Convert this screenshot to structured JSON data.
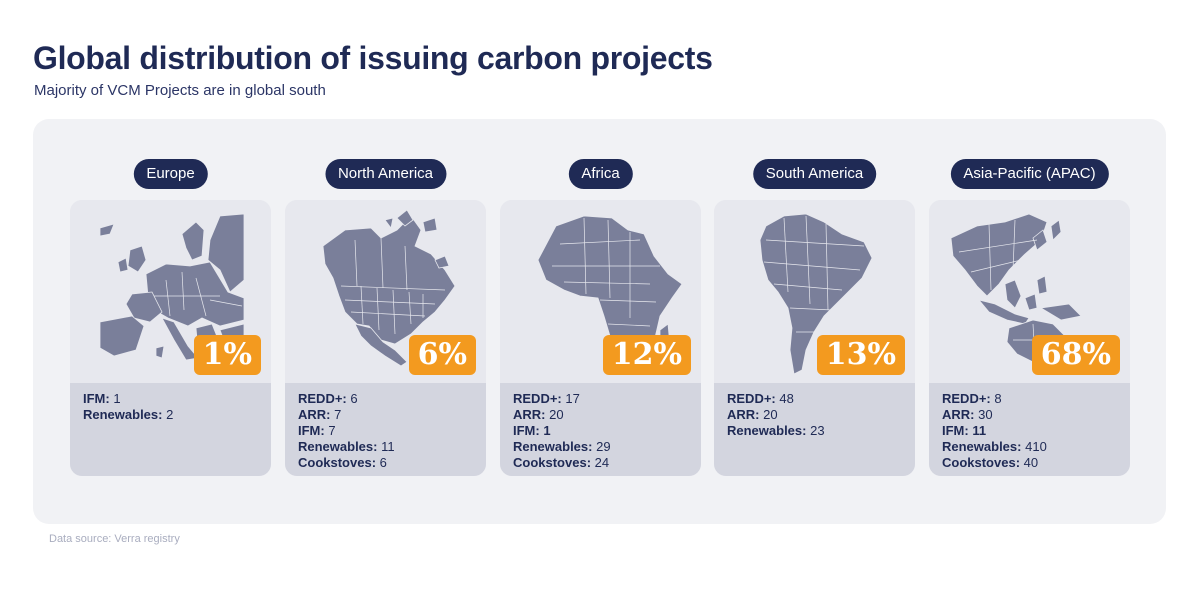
{
  "title": "Global distribution of issuing carbon projects",
  "subtitle": "Majority of VCM Projects are in global south",
  "source": "Data source: Verra registry",
  "colors": {
    "dark_navy": "#1f2a55",
    "badge_orange": "#f39a1f",
    "map_fill": "#7a7f9a",
    "stats_bg": "#d3d5df",
    "panel_bg": "#f1f2f5"
  },
  "regions": [
    {
      "name": "Europe",
      "percent": "1%",
      "map_icon": "europe-map",
      "stats": [
        {
          "label": "IFM:",
          "value": "1"
        },
        {
          "label": "Renewables:",
          "value": "2"
        }
      ]
    },
    {
      "name": "North America",
      "percent": "6%",
      "map_icon": "north-america-map",
      "stats": [
        {
          "label": "REDD+:",
          "value": "6"
        },
        {
          "label": "ARR:",
          "value": "7"
        },
        {
          "label": "IFM:",
          "value": "7"
        },
        {
          "label": "Renewables:",
          "value": "11"
        },
        {
          "label": "Cookstoves:",
          "value": "6"
        }
      ]
    },
    {
      "name": "Africa",
      "percent": "12%",
      "map_icon": "africa-map",
      "stats": [
        {
          "label": "REDD+:",
          "value": "17"
        },
        {
          "label": "ARR:",
          "value": "20"
        },
        {
          "label": "IFM:",
          "value": "1"
        },
        {
          "label": "Renewables:",
          "value": "29"
        },
        {
          "label": "Cookstoves:",
          "value": "24"
        }
      ]
    },
    {
      "name": "South America",
      "percent": "13%",
      "map_icon": "south-america-map",
      "stats": [
        {
          "label": "REDD+:",
          "value": "48"
        },
        {
          "label": "ARR:",
          "value": "20"
        },
        {
          "label": "Renewables:",
          "value": "23"
        }
      ]
    },
    {
      "name": "Asia-Pacific (APAC)",
      "percent": "68%",
      "map_icon": "asia-pacific-map",
      "stats": [
        {
          "label": "REDD+:",
          "value": "8"
        },
        {
          "label": "ARR:",
          "value": "30"
        },
        {
          "label": "IFM:",
          "value": "11"
        },
        {
          "label": "Renewables:",
          "value": "410"
        },
        {
          "label": "Cookstoves:",
          "value": "40"
        }
      ]
    }
  ]
}
